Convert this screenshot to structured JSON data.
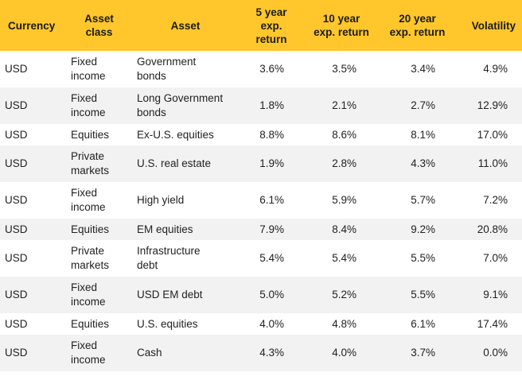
{
  "table": {
    "headers": [
      "Currency",
      "Asset\nclass",
      "Asset",
      "5 year\nexp.\nreturn",
      "10 year\nexp. return",
      "20 year\nexp. return",
      "Volatility"
    ],
    "rows": [
      {
        "currency": "USD",
        "asset_class": "Fixed\nincome",
        "asset": "Government\nbonds",
        "y5": "3.6%",
        "y10": "3.5%",
        "y20": "3.4%",
        "vol": "4.9%",
        "shade": false,
        "tall": true
      },
      {
        "currency": "USD",
        "asset_class": "Fixed\nincome",
        "asset": "Long Government\nbonds",
        "y5": "1.8%",
        "y10": "2.1%",
        "y20": "2.7%",
        "vol": "12.9%",
        "shade": true,
        "tall": true
      },
      {
        "currency": "USD",
        "asset_class": "Equities",
        "asset": "Ex-U.S. equities",
        "y5": "8.8%",
        "y10": "8.6%",
        "y20": "8.1%",
        "vol": "17.0%",
        "shade": false,
        "tall": false
      },
      {
        "currency": "USD",
        "asset_class": "Private\nmarkets",
        "asset": "U.S. real estate",
        "y5": "1.9%",
        "y10": "2.8%",
        "y20": "4.3%",
        "vol": "11.0%",
        "shade": true,
        "tall": true
      },
      {
        "currency": "USD",
        "asset_class": "Fixed\nincome",
        "asset": "High yield",
        "y5": "6.1%",
        "y10": "5.9%",
        "y20": "5.7%",
        "vol": "7.2%",
        "shade": false,
        "tall": true
      },
      {
        "currency": "USD",
        "asset_class": "Equities",
        "asset": "EM equities",
        "y5": "7.9%",
        "y10": "8.4%",
        "y20": "9.2%",
        "vol": "20.8%",
        "shade": true,
        "tall": false
      },
      {
        "currency": "USD",
        "asset_class": "Private\nmarkets",
        "asset": "Infrastructure\ndebt",
        "y5": "5.4%",
        "y10": "5.4%",
        "y20": "5.5%",
        "vol": "7.0%",
        "shade": false,
        "tall": true
      },
      {
        "currency": "USD",
        "asset_class": "Fixed\nincome",
        "asset": "USD EM debt",
        "y5": "5.0%",
        "y10": "5.2%",
        "y20": "5.5%",
        "vol": "9.1%",
        "shade": true,
        "tall": true
      },
      {
        "currency": "USD",
        "asset_class": "Equities",
        "asset": "U.S. equities",
        "y5": "4.0%",
        "y10": "4.8%",
        "y20": "6.1%",
        "vol": "17.4%",
        "shade": false,
        "tall": false
      },
      {
        "currency": "USD",
        "asset_class": "Fixed\nincome",
        "asset": "Cash",
        "y5": "4.3%",
        "y10": "4.0%",
        "y20": "3.7%",
        "vol": "0.0%",
        "shade": true,
        "tall": true
      }
    ]
  },
  "colors": {
    "header_bg": "#ffc72c",
    "shade_bg": "#f2f2f2",
    "text": "#222222"
  }
}
